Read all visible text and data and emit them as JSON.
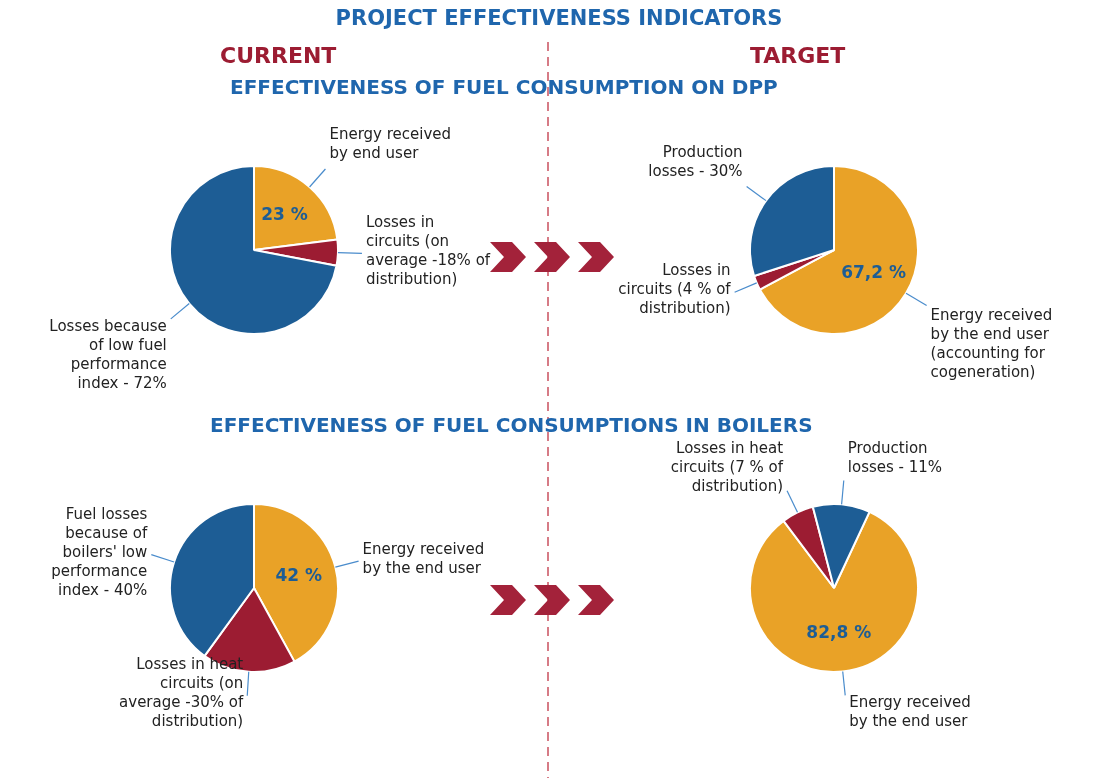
{
  "chart_data": [
    {
      "type": "pie",
      "title": "EFFECTIVENESS OF FUEL CONSUMPTION ON DPP",
      "subtitle": "CURRENT",
      "annotations": [
        "PROJECT EFFECTIVENESS INDICATORS"
      ],
      "categories": [
        "Energy received by end user",
        "Losses in circuits (on average -18% of distribution)",
        "Losses because of low fuel performance index - 72%"
      ],
      "values": [
        23,
        5,
        72
      ],
      "colors": [
        "#e9a227",
        "#9c1c32",
        "#1d5d95"
      ],
      "value_labels": [
        "23 %",
        null,
        null
      ]
    },
    {
      "type": "pie",
      "subtitle": "TARGET",
      "categories": [
        "Energy received by the end user (accounting for cogeneration)",
        "Losses in circuits (4 % of distribution)",
        "Production losses - 30%"
      ],
      "values": [
        67.2,
        2.8,
        30
      ],
      "colors": [
        "#e9a227",
        "#9c1c32",
        "#1d5d95"
      ],
      "value_labels": [
        "67,2 %",
        null,
        null
      ]
    },
    {
      "type": "pie",
      "title": "EFFECTIVENESS OF FUEL CONSUMPTIONS IN BOILERS",
      "categories": [
        "Energy received by the end user",
        "Losses in heat circuits (on average -30% of distribution)",
        "Fuel losses because of boilers' low performance index - 40%"
      ],
      "values": [
        42,
        18,
        40
      ],
      "colors": [
        "#e9a227",
        "#9c1c32",
        "#1d5d95"
      ],
      "value_labels": [
        "42 %",
        null,
        null
      ]
    },
    {
      "type": "pie",
      "categories": [
        "Energy received by the end user",
        "Losses in heat circuits (7 % of distribution)",
        "Production losses - 11%"
      ],
      "values": [
        82.8,
        6.2,
        11
      ],
      "colors": [
        "#e9a227",
        "#9c1c32",
        "#1d5d95"
      ],
      "value_labels": [
        "82,8 %",
        null,
        null
      ]
    }
  ]
}
